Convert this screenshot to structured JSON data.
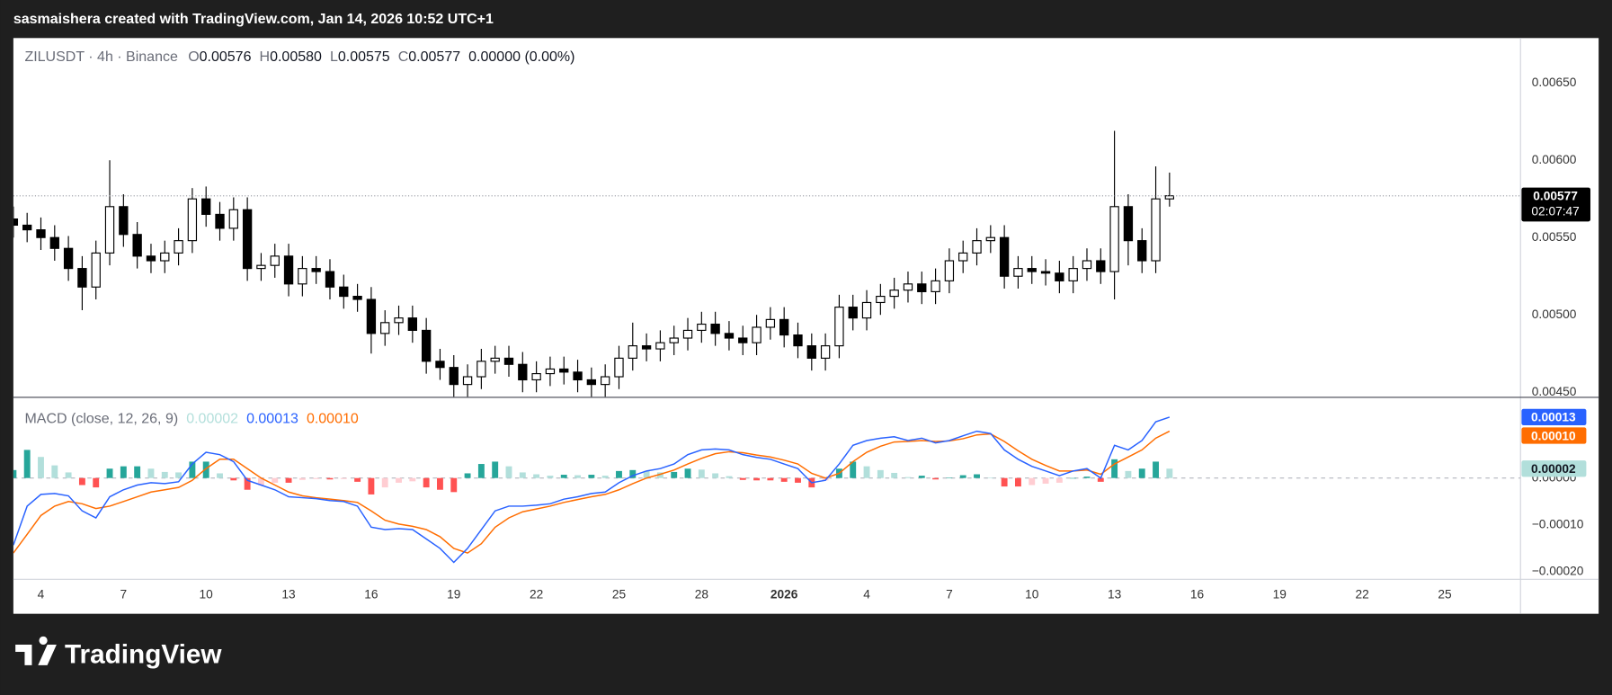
{
  "header": {
    "attribution": "sasmaishera created with TradingView.com, Jan 14, 2026 10:52 UTC+1",
    "brand": "TradingView"
  },
  "chart_data": [
    {
      "type": "candlestick",
      "symbol": "ZILUSDT · 4h · Binance",
      "ohlc_legend": [
        {
          "key": "O",
          "value": "0.00576"
        },
        {
          "key": "H",
          "value": "0.00580"
        },
        {
          "key": "L",
          "value": "0.00575"
        },
        {
          "key": "C",
          "value": "0.00577"
        }
      ],
      "change": "0.00000 (0.00%)",
      "countdown": "02:07:47",
      "open": [
        0.00562,
        0.00558,
        0.00555,
        0.0055,
        0.00543,
        0.0053,
        0.00518,
        0.0054,
        0.0057,
        0.00552,
        0.00538,
        0.00535,
        0.0054,
        0.00548,
        0.00575,
        0.00565,
        0.00556,
        0.00568,
        0.0053,
        0.00532,
        0.00538,
        0.0052,
        0.0053,
        0.00528,
        0.00518,
        0.00512,
        0.0051,
        0.00488,
        0.00495,
        0.00498,
        0.0049,
        0.0047,
        0.00466,
        0.00455,
        0.0046,
        0.0047,
        0.00472,
        0.00468,
        0.00458,
        0.00462,
        0.00465,
        0.00463,
        0.00458,
        0.00455,
        0.0046,
        0.00472,
        0.0048,
        0.00478,
        0.00482,
        0.00485,
        0.0049,
        0.00494,
        0.00488,
        0.00485,
        0.00482,
        0.00492,
        0.00497,
        0.00487,
        0.0048,
        0.00472,
        0.0048,
        0.00505,
        0.00498,
        0.00508,
        0.00512,
        0.00516,
        0.0052,
        0.00515,
        0.00522,
        0.00535,
        0.0054,
        0.00548,
        0.0055,
        0.00525,
        0.0053,
        0.00528,
        0.00527,
        0.00522,
        0.0053,
        0.00535,
        0.00528,
        0.0057,
        0.00548,
        0.00535,
        0.00575
      ],
      "high": [
        0.0057,
        0.00566,
        0.00563,
        0.00558,
        0.00551,
        0.00538,
        0.00548,
        0.006,
        0.00578,
        0.0056,
        0.00546,
        0.00548,
        0.00556,
        0.00582,
        0.00583,
        0.00573,
        0.00576,
        0.00576,
        0.0054,
        0.00546,
        0.00546,
        0.00538,
        0.00538,
        0.00536,
        0.00526,
        0.0052,
        0.00518,
        0.00503,
        0.00506,
        0.00506,
        0.00498,
        0.00478,
        0.00474,
        0.00468,
        0.00478,
        0.0048,
        0.0048,
        0.00476,
        0.0047,
        0.00473,
        0.00473,
        0.00471,
        0.00466,
        0.00468,
        0.0048,
        0.00495,
        0.00488,
        0.0049,
        0.00493,
        0.00498,
        0.00502,
        0.00502,
        0.00496,
        0.00493,
        0.005,
        0.00505,
        0.00505,
        0.00495,
        0.00488,
        0.00488,
        0.00513,
        0.00513,
        0.00516,
        0.0052,
        0.00524,
        0.00528,
        0.00528,
        0.0053,
        0.00543,
        0.00548,
        0.00556,
        0.00558,
        0.00558,
        0.00538,
        0.00538,
        0.00536,
        0.00535,
        0.00538,
        0.00543,
        0.00543,
        0.00619,
        0.00578,
        0.00556,
        0.00596,
        0.00592
      ],
      "low": [
        0.0055,
        0.00547,
        0.00542,
        0.00535,
        0.00522,
        0.00503,
        0.0051,
        0.00532,
        0.00544,
        0.0053,
        0.00527,
        0.00527,
        0.00532,
        0.0054,
        0.00557,
        0.00548,
        0.00548,
        0.00522,
        0.00522,
        0.00524,
        0.00512,
        0.00512,
        0.0052,
        0.0051,
        0.00504,
        0.00502,
        0.00475,
        0.0048,
        0.00487,
        0.00482,
        0.00462,
        0.00458,
        0.00447,
        0.00447,
        0.00452,
        0.00462,
        0.0046,
        0.0045,
        0.0045,
        0.00454,
        0.00455,
        0.0045,
        0.00447,
        0.00447,
        0.00452,
        0.00464,
        0.0047,
        0.0047,
        0.00474,
        0.00477,
        0.00482,
        0.0048,
        0.00477,
        0.00474,
        0.00474,
        0.00484,
        0.00479,
        0.00472,
        0.00464,
        0.00464,
        0.00472,
        0.0049,
        0.0049,
        0.005,
        0.00504,
        0.00508,
        0.00507,
        0.00507,
        0.00514,
        0.00527,
        0.00532,
        0.0054,
        0.00517,
        0.00517,
        0.0052,
        0.00519,
        0.00514,
        0.00514,
        0.00522,
        0.0052,
        0.0051,
        0.00532,
        0.00527,
        0.00527,
        0.0057
      ],
      "close": [
        0.00558,
        0.00555,
        0.0055,
        0.00543,
        0.0053,
        0.00518,
        0.0054,
        0.0057,
        0.00552,
        0.00538,
        0.00535,
        0.0054,
        0.00548,
        0.00575,
        0.00565,
        0.00556,
        0.00568,
        0.0053,
        0.00532,
        0.00538,
        0.0052,
        0.0053,
        0.00528,
        0.00518,
        0.00512,
        0.0051,
        0.00488,
        0.00495,
        0.00498,
        0.0049,
        0.0047,
        0.00466,
        0.00455,
        0.0046,
        0.0047,
        0.00472,
        0.00468,
        0.00458,
        0.00462,
        0.00465,
        0.00463,
        0.00458,
        0.00455,
        0.0046,
        0.00472,
        0.0048,
        0.00478,
        0.00482,
        0.00485,
        0.0049,
        0.00494,
        0.00488,
        0.00485,
        0.00482,
        0.00492,
        0.00497,
        0.00487,
        0.0048,
        0.00472,
        0.0048,
        0.00505,
        0.00498,
        0.00508,
        0.00512,
        0.00516,
        0.0052,
        0.00515,
        0.00522,
        0.00535,
        0.0054,
        0.00548,
        0.0055,
        0.00525,
        0.0053,
        0.00528,
        0.00527,
        0.00522,
        0.0053,
        0.00535,
        0.00528,
        0.0057,
        0.00548,
        0.00535,
        0.00575,
        0.00577
      ],
      "up_color": "#ffffff",
      "down_color": "#000000",
      "wick_color": "#000000",
      "ylim": [
        0.00447,
        0.00679
      ],
      "yticks": [
        {
          "value": 0.0045,
          "label": "0.00450"
        },
        {
          "value": 0.005,
          "label": "0.00500"
        },
        {
          "value": 0.0055,
          "label": "0.00550"
        },
        {
          "value": 0.006,
          "label": "0.00600"
        },
        {
          "value": 0.0065,
          "label": "0.00650"
        }
      ],
      "xlim": [
        0,
        109.5
      ],
      "xticks": [
        {
          "value": 2,
          "label": "4"
        },
        {
          "value": 8,
          "label": "7"
        },
        {
          "value": 14,
          "label": "10"
        },
        {
          "value": 20,
          "label": "13"
        },
        {
          "value": 26,
          "label": "16"
        },
        {
          "value": 32,
          "label": "19"
        },
        {
          "value": 38,
          "label": "22"
        },
        {
          "value": 44,
          "label": "25"
        },
        {
          "value": 50,
          "label": "28"
        },
        {
          "value": 56,
          "label": "2026"
        },
        {
          "value": 62,
          "label": "4"
        },
        {
          "value": 68,
          "label": "7"
        },
        {
          "value": 74,
          "label": "10"
        },
        {
          "value": 80,
          "label": "13"
        },
        {
          "value": 86,
          "label": "16"
        },
        {
          "value": 92,
          "label": "19"
        },
        {
          "value": 98,
          "label": "22"
        },
        {
          "value": 104,
          "label": "25"
        }
      ]
    },
    {
      "type": "macd",
      "title": "MACD (close, 12, 26, 9)",
      "histogram": {
        "colors": [
          "#26a69a",
          "#b2dfdb",
          "#ff5252",
          "#ffcdd2"
        ],
        "color": "#b2dfdb",
        "last_label": "0.00002",
        "values": [
          1.7e-05,
          6e-05,
          4.5e-05,
          2.7e-05,
          1.2e-05,
          -1.5e-05,
          -2e-05,
          2e-05,
          2.5e-05,
          2.5e-05,
          2e-05,
          1.3e-05,
          1.2e-05,
          3.5e-05,
          3.5e-05,
          1e-05,
          -5e-06,
          -2.5e-05,
          -1.5e-05,
          -1e-05,
          -1e-05,
          -4e-06,
          -2e-06,
          -3e-06,
          -2e-06,
          -8e-06,
          -3.5e-05,
          -2e-05,
          -1e-05,
          -7e-06,
          -2e-05,
          -2.5e-05,
          -3e-05,
          1e-05,
          3e-05,
          3.5e-05,
          2.5e-05,
          1.2e-05,
          8e-06,
          5e-06,
          7e-06,
          6e-06,
          7e-06,
          5e-06,
          1.5e-05,
          1.7e-05,
          1.5e-05,
          1.2e-05,
          1.3e-05,
          2e-05,
          1.8e-05,
          1e-05,
          4e-06,
          -4e-06,
          -5e-06,
          -5e-06,
          -8e-06,
          -1e-05,
          -2e-05,
          -5e-06,
          2e-05,
          3.5e-05,
          2.5e-05,
          1.7e-05,
          1.1e-05,
          2e-06,
          5e-06,
          -3e-06,
          1e-06,
          6e-06,
          8e-06,
          1e-06,
          -1.8e-05,
          -1.8e-05,
          -1.5e-05,
          -1.2e-05,
          -1e-05,
          0,
          3e-06,
          -8e-06,
          4e-05,
          1.5e-05,
          2e-05,
          3.5e-05,
          2e-05
        ]
      },
      "macd": {
        "color": "#2962ff",
        "last_label": "0.00013",
        "values": [
          -0.000143,
          -6e-05,
          -3.5e-05,
          -3.3e-05,
          -3.8e-05,
          -7e-05,
          -8.5e-05,
          -4e-05,
          -2.5e-05,
          -1.5e-05,
          -1e-05,
          -1.2e-05,
          -8e-06,
          3e-05,
          5.5e-05,
          5e-05,
          3.5e-05,
          -5e-06,
          -1.5e-05,
          -2.5e-05,
          -4e-05,
          -4.2e-05,
          -4.4e-05,
          -4.8e-05,
          -5e-05,
          -6e-05,
          -0.000105,
          -0.00011,
          -0.000108,
          -0.00011,
          -0.00013,
          -0.00015,
          -0.00018,
          -0.00015,
          -0.00011,
          -7e-05,
          -6e-05,
          -6e-05,
          -5.8e-05,
          -5.5e-05,
          -4.5e-05,
          -4e-05,
          -3.3e-05,
          -3e-05,
          -1e-05,
          5e-06,
          1.5e-05,
          2e-05,
          3e-05,
          5e-05,
          6e-05,
          6.2e-05,
          6e-05,
          5e-05,
          4.4e-05,
          4e-05,
          3e-05,
          2e-05,
          -1e-05,
          -5e-06,
          3e-05,
          7e-05,
          8e-05,
          8.5e-05,
          8.8e-05,
          8e-05,
          8.5e-05,
          7.5e-05,
          8e-05,
          9e-05,
          0.0001,
          9.5e-05,
          6e-05,
          4e-05,
          2.5e-05,
          1.5e-05,
          5e-06,
          1.5e-05,
          2e-05,
          0,
          7e-05,
          6e-05,
          8e-05,
          0.00012,
          0.00013
        ]
      },
      "signal": {
        "color": "#ff6d00",
        "last_label": "0.00010",
        "values": [
          -0.00016,
          -0.00012,
          -8e-05,
          -6e-05,
          -5e-05,
          -5.5e-05,
          -6.5e-05,
          -6e-05,
          -5e-05,
          -4e-05,
          -3e-05,
          -2.5e-05,
          -2e-05,
          -5e-06,
          2e-05,
          4e-05,
          4e-05,
          2e-05,
          0,
          -1.5e-05,
          -3e-05,
          -3.8e-05,
          -4.2e-05,
          -4.5e-05,
          -4.8e-05,
          -5.2e-05,
          -7e-05,
          -9e-05,
          -9.8e-05,
          -0.000103,
          -0.00011,
          -0.000125,
          -0.00015,
          -0.00016,
          -0.00014,
          -0.000105,
          -8.5e-05,
          -7.2e-05,
          -6.6e-05,
          -6e-05,
          -5.2e-05,
          -4.6e-05,
          -4e-05,
          -3.5e-05,
          -2.5e-05,
          -1.2e-05,
          0,
          8e-06,
          1.7e-05,
          3e-05,
          4.2e-05,
          5.2e-05,
          5.6e-05,
          5.4e-05,
          4.9e-05,
          4.5e-05,
          3.8e-05,
          3e-05,
          1e-05,
          0,
          1e-05,
          3.5e-05,
          5.5e-05,
          6.8e-05,
          7.7e-05,
          7.8e-05,
          8e-05,
          7.8e-05,
          7.9e-05,
          8.4e-05,
          9.2e-05,
          9.4e-05,
          7.8e-05,
          5.8e-05,
          4e-05,
          2.7e-05,
          1.5e-05,
          1.5e-05,
          1.7e-05,
          8e-06,
          3e-05,
          4.5e-05,
          6e-05,
          8.5e-05,
          0.0001
        ]
      },
      "ylim": [
        -0.000215,
        0.000171
      ],
      "yticks": [
        {
          "value": 0,
          "label": "0.00000"
        },
        {
          "value": -0.0001,
          "label": "−0.00010"
        },
        {
          "value": -0.0002,
          "label": "−0.00020"
        }
      ]
    }
  ]
}
